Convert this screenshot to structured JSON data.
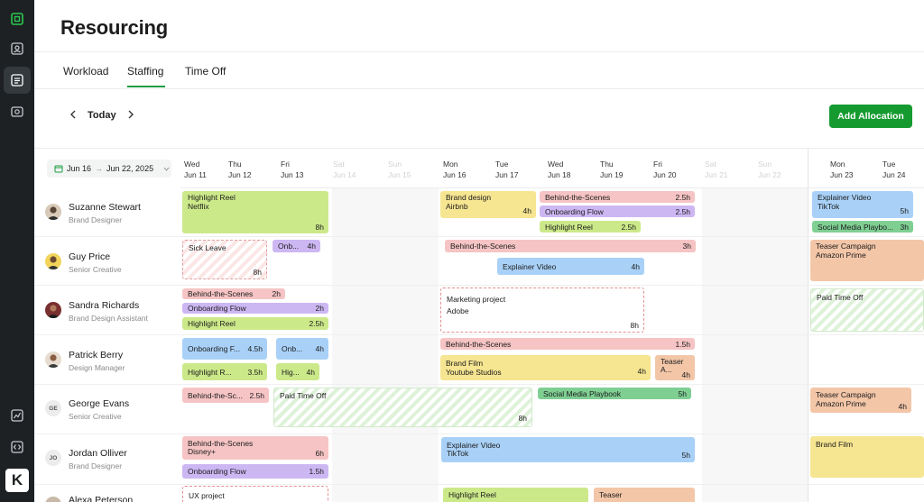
{
  "app": {
    "title": "Resourcing"
  },
  "tabs": [
    {
      "label": "Workload"
    },
    {
      "label": "Staffing",
      "active": true
    },
    {
      "label": "Time Off"
    }
  ],
  "toolbar": {
    "prev_icon": "chevron-left-icon",
    "today_label": "Today",
    "next_icon": "chevron-right-icon",
    "add_label": "Add Allocation"
  },
  "date_range": {
    "start": "Jun 16",
    "arrow": "→",
    "end": "Jun 22, 2025",
    "icon": "calendar-icon"
  },
  "days": [
    {
      "dow": "Wed",
      "date": "Jun 11",
      "weekend": false
    },
    {
      "dow": "Thu",
      "date": "Jun 12",
      "weekend": false
    },
    {
      "dow": "Fri",
      "date": "Jun 13",
      "weekend": false
    },
    {
      "dow": "Sat",
      "date": "Jun 14",
      "weekend": true
    },
    {
      "dow": "Sun",
      "date": "Jun 15",
      "weekend": true
    },
    {
      "dow": "Mon",
      "date": "Jun 16",
      "weekend": false
    },
    {
      "dow": "Tue",
      "date": "Jun 17",
      "weekend": false
    },
    {
      "dow": "Wed",
      "date": "Jun 18",
      "weekend": false
    },
    {
      "dow": "Thu",
      "date": "Jun 19",
      "weekend": false
    },
    {
      "dow": "Fri",
      "date": "Jun 20",
      "weekend": false
    },
    {
      "dow": "Sat",
      "date": "Jun 21",
      "weekend": true
    },
    {
      "dow": "Sun",
      "date": "Jun 22",
      "weekend": true
    },
    {
      "dow": "Mon",
      "date": "Jun 23",
      "weekend": false
    },
    {
      "dow": "Tue",
      "date": "Jun 24",
      "weekend": false
    }
  ],
  "people": [
    {
      "name": "Suzanne Stewart",
      "role": "Brand Designer",
      "initials": ""
    },
    {
      "name": "Guy Price",
      "role": "Senior Creative",
      "initials": ""
    },
    {
      "name": "Sandra Richards",
      "role": "Brand Design Assistant",
      "initials": ""
    },
    {
      "name": "Patrick Berry",
      "role": "Design Manager",
      "initials": ""
    },
    {
      "name": "George Evans",
      "role": "Senior Creative",
      "initials": "GE"
    },
    {
      "name": "Jordan Olliver",
      "role": "Brand Designer",
      "initials": "JO"
    },
    {
      "name": "Alexa Peterson",
      "role": "",
      "initials": ""
    }
  ],
  "allocations": {
    "a01": {
      "title": "Highlight Reel",
      "sub": "Netflix",
      "hours": "8h"
    },
    "a02": {
      "title": "Brand design",
      "sub": "Airbnb",
      "hours": "4h"
    },
    "a03": {
      "title": "Behind-the-Scenes",
      "hours": "2.5h"
    },
    "a04": {
      "title": "Onboarding Flow",
      "hours": "2.5h"
    },
    "a05": {
      "title": "Highlight Reel",
      "hours": "2.5h"
    },
    "a06": {
      "title": "Explainer Video",
      "sub": "TikTok",
      "hours": "5h"
    },
    "a07": {
      "title": "Social Media Playbo...",
      "hours": "3h"
    },
    "a08": {
      "title": "Sick Leave",
      "hours": "8h"
    },
    "a09": {
      "title": "Onb...",
      "hours": "4h"
    },
    "a10": {
      "title": "Behind-the-Scenes",
      "hours": "3h"
    },
    "a11": {
      "title": "Explainer Video",
      "hours": "4h"
    },
    "a12": {
      "title": "Teaser Campaign",
      "sub": "Amazon Prime"
    },
    "a13": {
      "title": "Behind-the-Scenes",
      "hours": "2h"
    },
    "a14": {
      "title": "Onboarding Flow",
      "hours": "2h"
    },
    "a15": {
      "title": "Highlight Reel",
      "hours": "2.5h"
    },
    "a16": {
      "title": "Marketing project",
      "sub": "Adobe",
      "hours": "8h"
    },
    "a17": {
      "title": "Paid Time Off"
    },
    "a18": {
      "title": "Onboarding F...",
      "hours": "4.5h"
    },
    "a19": {
      "title": "Onb...",
      "hours": "4h"
    },
    "a20": {
      "title": "Highlight R...",
      "hours": "3.5h"
    },
    "a21": {
      "title": "Hig...",
      "hours": "4h"
    },
    "a22": {
      "title": "Behind-the-Scenes",
      "hours": "1.5h"
    },
    "a23": {
      "title": "Brand Film",
      "sub": "Youtube Studios",
      "hours": "4h"
    },
    "a24": {
      "title": "Teaser",
      "sub": "A...",
      "hours": "4h"
    },
    "a25": {
      "title": "Behind-the-Sc...",
      "hours": "2.5h"
    },
    "a26": {
      "title": "Paid Time Off",
      "hours": "8h"
    },
    "a27": {
      "title": "Social Media Playbook",
      "hours": "5h"
    },
    "a28": {
      "title": "Teaser Campaign",
      "sub": "Amazon Prime",
      "hours": "4h"
    },
    "a29": {
      "title": "Behind-the-Scenes",
      "sub": "Disney+",
      "hours": "6h"
    },
    "a30": {
      "title": "Explainer Video",
      "sub": "TikTok",
      "hours": "5h"
    },
    "a31": {
      "title": "Brand Film"
    },
    "a32": {
      "title": "Onboarding Flow",
      "hours": "1.5h"
    },
    "a33": {
      "title": "UX project"
    },
    "a34": {
      "title": "Highlight Reel"
    },
    "a35": {
      "title": "Teaser"
    }
  }
}
